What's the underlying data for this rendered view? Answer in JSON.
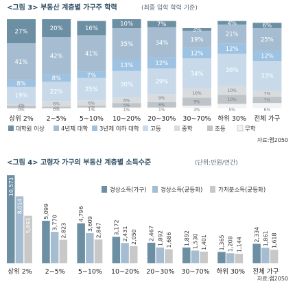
{
  "chart_data": [
    {
      "type": "bar",
      "subtype": "stacked-100",
      "title": "<그림 3> 부동산 계층별 가구주 학력",
      "subtitle": "(최종 입학 학력 기준)",
      "categories": [
        "상위 2%",
        "2~5%",
        "5~10%",
        "10~20%",
        "20~30%",
        "30~70%",
        "하위 30%",
        "전체 가구"
      ],
      "series": [
        {
          "name": "무학",
          "values": [
            0,
            0,
            1,
            1,
            1,
            3,
            5,
            6
          ],
          "color": "#f1f3f5"
        },
        {
          "name": "초등",
          "values": [
            3,
            2,
            2,
            5,
            6,
            9,
            10,
            7
          ],
          "color": "#bfc4c9"
        },
        {
          "name": "중학",
          "values": [
            2,
            6,
            6,
            6,
            9,
            10,
            10,
            7
          ],
          "color": "#d9dcdf"
        },
        {
          "name": "고등",
          "values": [
            19,
            22,
            25,
            30,
            29,
            34,
            36,
            33
          ],
          "color": "#c8daea"
        },
        {
          "name": "3년제 이하 대학",
          "values": [
            8,
            8,
            7,
            13,
            12,
            12,
            12,
            12
          ],
          "color": "#9ec2e1"
        },
        {
          "name": "4년제 대학",
          "values": [
            41,
            42,
            41,
            35,
            34,
            19,
            21,
            25
          ],
          "color": "#a6bdd1"
        },
        {
          "name": "대학원 이상",
          "values": [
            27,
            20,
            16,
            10,
            7,
            3,
            4,
            6
          ],
          "color": "#6d8fa4"
        }
      ],
      "ylim": [
        0,
        100
      ],
      "source": "자료:랩2050"
    },
    {
      "type": "bar",
      "subtype": "grouped",
      "title": "<그림 4> 고령자 가구의 부동산 계층별 소득수준",
      "subtitle": "(단위:만원/연간)",
      "categories": [
        "상위 2%",
        "2~5%",
        "5~10%",
        "10~20%",
        "20~30%",
        "30~70%",
        "하위 30%",
        "전체 가구"
      ],
      "series": [
        {
          "name": "경상소득(가구)",
          "values": [
            10571,
            5099,
            4796,
            3172,
            2467,
            1892,
            1365,
            2334
          ],
          "labels": [
            "10,571",
            "5,099",
            "4,796",
            "3,172",
            "2,467",
            "1,892",
            "1,365",
            "2,334"
          ],
          "color": "#6d8fa4"
        },
        {
          "name": "경상소득(균등화)",
          "values": [
            8014,
            3770,
            3609,
            2431,
            1892,
            1530,
            1208,
            1861
          ],
          "labels": [
            "8,014",
            "3,770",
            "3,609",
            "2,431",
            "1,892",
            "1,530",
            "1,208",
            "1,861"
          ],
          "color": "#a6bdd1"
        },
        {
          "name": "가처분소득(균등화)",
          "values": [
            5693,
            2823,
            2847,
            2050,
            1686,
            1401,
            1144,
            1618
          ],
          "labels": [
            "5,693",
            "2,823",
            "2,847",
            "2,050",
            "1,686",
            "1,401",
            "1,144",
            "1,618"
          ],
          "color": "#c8c8c8"
        }
      ],
      "ylim": [
        0,
        11000
      ],
      "source": "자료:랩2050"
    }
  ],
  "legend1_order": [
    "대학원 이상",
    "4년제 대학",
    "3년제 이하 대학",
    "고등",
    "중학",
    "초등",
    "무학"
  ]
}
